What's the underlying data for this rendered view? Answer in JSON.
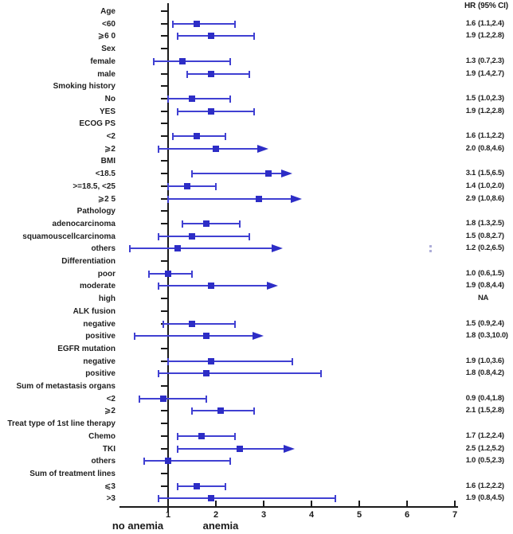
{
  "header": {
    "hr_label": "HR",
    "ci_label": "(95% CI)"
  },
  "footer": {
    "left_group": "no anemia",
    "right_group": "anemia"
  },
  "colors": {
    "line_blue": "#4040d2",
    "marker_blue": "#2d2dc6",
    "axis_black": "#1a1a1a"
  },
  "chart_data": {
    "type": "forest",
    "title": "",
    "x_ticks": [
      1,
      2,
      3,
      4,
      5,
      6,
      7
    ],
    "x_reference_line": 1,
    "xlabel_left": "no anemia",
    "xlabel_right": "anemia",
    "value_columns": [
      "HR",
      "(95% CI)"
    ],
    "rows": [
      {
        "label": "Age",
        "type": "header"
      },
      {
        "label": "<60",
        "type": "data",
        "hr": 1.6,
        "lo": 1.1,
        "hi": 2.4,
        "hr_text": "1.6",
        "ci_text": "(1.1,2.4)"
      },
      {
        "label": "⩾6 0",
        "type": "data",
        "hr": 1.9,
        "lo": 1.2,
        "hi": 2.8,
        "hr_text": "1.9",
        "ci_text": "(1.2,2.8)"
      },
      {
        "label": "Sex",
        "type": "header"
      },
      {
        "label": "female",
        "type": "data",
        "hr": 1.3,
        "lo": 0.7,
        "hi": 2.3,
        "hr_text": "1.3",
        "ci_text": "(0.7,2.3)"
      },
      {
        "label": "male",
        "type": "data",
        "hr": 1.9,
        "lo": 1.4,
        "hi": 2.7,
        "hr_text": "1.9",
        "ci_text": "(1.4,2.7)"
      },
      {
        "label": "Smoking history",
        "type": "header"
      },
      {
        "label": "No",
        "type": "data",
        "hr": 1.5,
        "lo": 1.0,
        "hi": 2.3,
        "hr_text": "1.5",
        "ci_text": "(1.0,2.3)"
      },
      {
        "label": "YES",
        "type": "data",
        "hr": 1.9,
        "lo": 1.2,
        "hi": 2.8,
        "hr_text": "1.9",
        "ci_text": "(1.2,2.8)"
      },
      {
        "label": "ECOG PS",
        "type": "header"
      },
      {
        "label": "<2",
        "type": "data",
        "hr": 1.6,
        "lo": 1.1,
        "hi": 2.2,
        "hr_text": "1.6",
        "ci_text": "(1.1,2.2)"
      },
      {
        "label": "⩾2",
        "type": "data",
        "hr": 2.0,
        "lo": 0.8,
        "hi": 4.6,
        "clip": 3.1,
        "hr_text": "2.0",
        "ci_text": "(0.8,4.6)"
      },
      {
        "label": "BMI",
        "type": "header"
      },
      {
        "label": "<18.5",
        "type": "data",
        "hr": 3.1,
        "lo": 1.5,
        "hi": 6.5,
        "clip": 3.6,
        "hr_text": "3.1",
        "ci_text": "(1.5,6.5)"
      },
      {
        "label": ">=18.5, <25",
        "type": "data",
        "hr": 1.4,
        "lo": 1.0,
        "hi": 2.0,
        "hr_text": "1.4",
        "ci_text": "(1.0,2.0)"
      },
      {
        "label": "⩾2 5",
        "type": "data",
        "hr": 2.9,
        "lo": 1.0,
        "hi": 8.6,
        "clip": 3.8,
        "hr_text": "2.9",
        "ci_text": "(1.0,8.6)"
      },
      {
        "label": "Pathology",
        "type": "header"
      },
      {
        "label": "adenocarcinoma",
        "type": "data",
        "hr": 1.8,
        "lo": 1.3,
        "hi": 2.5,
        "hr_text": "1.8",
        "ci_text": "(1.3,2.5)"
      },
      {
        "label": "squamouscellcarcinoma",
        "type": "data",
        "hr": 1.5,
        "lo": 0.8,
        "hi": 2.7,
        "hr_text": "1.5",
        "ci_text": "(0.8,2.7)"
      },
      {
        "label": "others",
        "type": "data",
        "hr": 1.2,
        "lo": 0.2,
        "hi": 6.5,
        "clip": 3.4,
        "hr_text": "1.2",
        "ci_text": "(0.2,6.5)"
      },
      {
        "label": "Differentiation",
        "type": "header"
      },
      {
        "label": "poor",
        "type": "data",
        "hr": 1.0,
        "lo": 0.6,
        "hi": 1.5,
        "hr_text": "1.0",
        "ci_text": "(0.6,1.5)"
      },
      {
        "label": "moderate",
        "type": "data",
        "hr": 1.9,
        "lo": 0.8,
        "hi": 4.4,
        "clip": 3.3,
        "hr_text": "1.9",
        "ci_text": "(0.8,4.4)"
      },
      {
        "label": "high",
        "type": "na",
        "na_text": "NA"
      },
      {
        "label": "ALK fusion",
        "type": "header"
      },
      {
        "label": "negative",
        "type": "data",
        "hr": 1.5,
        "lo": 0.9,
        "hi": 2.4,
        "hr_text": "1.5",
        "ci_text": "(0.9,2.4)"
      },
      {
        "label": "positive",
        "type": "data",
        "hr": 1.8,
        "lo": 0.3,
        "hi": 10.0,
        "clip": 3.0,
        "hr_text": "1.8",
        "ci_text": "(0.3,10.0)"
      },
      {
        "label": "EGFR mutation",
        "type": "header"
      },
      {
        "label": "negative",
        "type": "data",
        "hr": 1.9,
        "lo": 1.0,
        "hi": 3.6,
        "hr_text": "1.9",
        "ci_text": "(1.0,3.6)"
      },
      {
        "label": "positive",
        "type": "data",
        "hr": 1.8,
        "lo": 0.8,
        "hi": 4.2,
        "hr_text": "1.8",
        "ci_text": "(0.8,4.2)"
      },
      {
        "label": "Sum of metastasis organs",
        "type": "header"
      },
      {
        "label": "<2",
        "type": "data",
        "hr": 0.9,
        "lo": 0.4,
        "hi": 1.8,
        "hr_text": "0.9",
        "ci_text": "(0.4,1.8)"
      },
      {
        "label": "⩾2",
        "type": "data",
        "hr": 2.1,
        "lo": 1.5,
        "hi": 2.8,
        "hr_text": "2.1",
        "ci_text": "(1.5,2.8)"
      },
      {
        "label": "Treat type of 1st line therapy",
        "type": "header"
      },
      {
        "label": "Chemo",
        "type": "data",
        "hr": 1.7,
        "lo": 1.2,
        "hi": 2.4,
        "hr_text": "1.7",
        "ci_text": "(1.2,2.4)"
      },
      {
        "label": "TKI",
        "type": "data",
        "hr": 2.5,
        "lo": 1.2,
        "hi": 5.2,
        "clip": 3.65,
        "hr_text": "2.5",
        "ci_text": "(1.2,5.2)"
      },
      {
        "label": "others",
        "type": "data",
        "hr": 1.0,
        "lo": 0.5,
        "hi": 2.3,
        "hr_text": "1.0",
        "ci_text": "(0.5,2.3)"
      },
      {
        "label": "Sum of treatment lines",
        "type": "header"
      },
      {
        "label": "⩽3",
        "type": "data",
        "hr": 1.6,
        "lo": 1.2,
        "hi": 2.2,
        "hr_text": "1.6",
        "ci_text": "(1.2,2.2)"
      },
      {
        "label": ">3",
        "type": "data",
        "hr": 1.9,
        "lo": 0.8,
        "hi": 4.5,
        "hr_text": "1.9",
        "ci_text": "(0.8,4.5)"
      }
    ]
  }
}
